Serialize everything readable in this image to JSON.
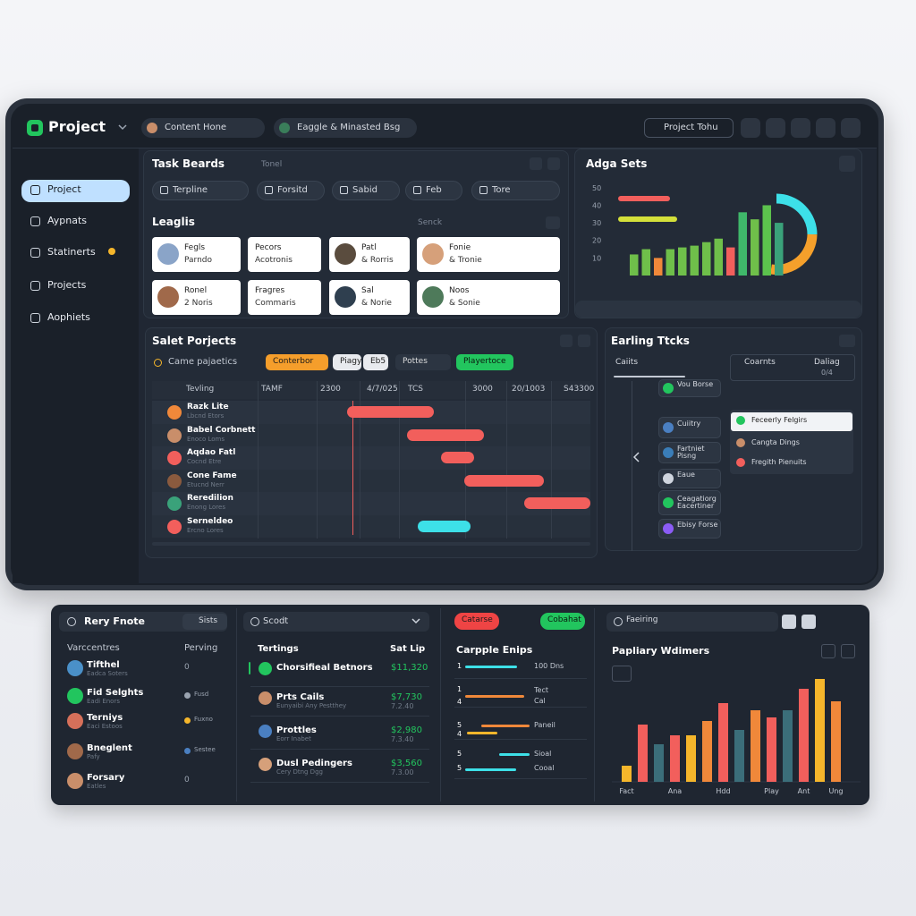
{
  "header": {
    "brand": "Project",
    "tabs": [
      "Content Hone",
      "Eaggle & Minasted Bsg"
    ],
    "menu": "Project Tohu"
  },
  "sidebar": [
    "Project",
    "Aypnats",
    "Statinerts",
    "Projects",
    "Aophiets"
  ],
  "task_boards": {
    "title": "Task Beards",
    "tab": "Tonel",
    "filters": [
      "Terpline",
      "Forsitd",
      "Sabid",
      "Feb",
      "Tore"
    ],
    "section": "Leaglis",
    "search": "Senck",
    "cards": [
      {
        "name": "Fegls",
        "sub": "Parndo"
      },
      {
        "name": "Pecors",
        "sub": "Acotronis"
      },
      {
        "name": "Patl",
        "sub": "& Rorris"
      },
      {
        "name": "Fonie",
        "sub": "& Tronie"
      },
      {
        "name": "Ronel",
        "sub": "2 Noris"
      },
      {
        "name": "Fragres",
        "sub": "Commaris"
      },
      {
        "name": "Sal",
        "sub": "& Norie"
      },
      {
        "name": "Noos",
        "sub": "& Sonie"
      }
    ]
  },
  "chart_data": [
    {
      "type": "bar",
      "title": "Adga Sets",
      "values": [
        12,
        15,
        10,
        15,
        16,
        17,
        19,
        21,
        16,
        36,
        32,
        40,
        30
      ],
      "colors": [
        "#6fbf4a",
        "#6fbf4a",
        "#f0883a",
        "#6fbf4a",
        "#6fbf4a",
        "#6fbf4a",
        "#6fbf4a",
        "#6fbf4a",
        "#f25f5c",
        "#3fb86a",
        "#6fbf4a",
        "#5cc24d",
        "#3aa27a"
      ],
      "ylim": [
        0,
        55
      ],
      "yticks": [
        50,
        40,
        30,
        20,
        10
      ]
    },
    {
      "type": "bar",
      "title": "Papliary Wdimers",
      "categories": [
        "Fact",
        null,
        null,
        "Ana",
        null,
        null,
        "Hdd",
        null,
        null,
        "Play",
        null,
        "Ant",
        null,
        "Ung"
      ],
      "values": [
        18,
        64,
        42,
        52,
        52,
        68,
        88,
        58,
        80,
        72,
        80,
        104,
        115,
        90
      ],
      "colors": [
        "#f5b62b",
        "#f25f5c",
        "#3b6e7a",
        "#f25f5c",
        "#f5b62b",
        "#f0883a",
        "#f25f5c",
        "#3b6e7a",
        "#f0883a",
        "#f25f5c",
        "#3b6e7a",
        "#f25f5c",
        "#f5b62b",
        "#f0883a"
      ],
      "ylim": [
        0,
        120
      ]
    }
  ],
  "gantt": {
    "title": "Salet Porjects",
    "subtitle": "Came pajaetics",
    "buttons": [
      "Conterbor",
      "Piagy",
      "Eb5",
      "Pottes",
      "Playertoce"
    ],
    "columns": [
      "Tevling",
      "TAMF",
      "2300",
      "4/7/025",
      "TCS",
      "3000",
      "20/1003",
      "S43300"
    ],
    "xlim": [
      0,
      100
    ],
    "rows": [
      {
        "name": "Razk Lite",
        "sub": "Lbcnd Etors",
        "start": 27,
        "end": 53,
        "color": "#f25f5c"
      },
      {
        "name": "Babel Corbnett",
        "sub": "Enoco Loms",
        "start": 45,
        "end": 68,
        "color": "#f25f5c"
      },
      {
        "name": "Aqdao Fatl",
        "sub": "Cocnd Etre",
        "start": 55,
        "end": 65,
        "color": "#f25f5c"
      },
      {
        "name": "Cone Fame",
        "sub": "Etucnd Nerr",
        "start": 62,
        "end": 86,
        "color": "#f25f5c"
      },
      {
        "name": "Reredilion",
        "sub": "Enong Lores",
        "start": 80,
        "end": 100,
        "color": "#f25f5c"
      },
      {
        "name": "Serneldeo",
        "sub": "Ercno Lores",
        "start": 48,
        "end": 64,
        "color": "#3de0e8"
      }
    ]
  },
  "earnings": {
    "title": "Earling Ttcks",
    "tab": "Caiits",
    "columns": [
      "Coarnts",
      "Daliag"
    ],
    "count": "0/4",
    "list": [
      "Vou Borse",
      "Cuiitry",
      "Fartniet Pisng",
      "Eaue",
      "Ceagatiorg Eacertiner",
      "Ebisy Forse"
    ],
    "dropdown": [
      "Feceerly Felgirs",
      "Cangta Dings",
      "Fregith Pienuits"
    ]
  },
  "bottom": {
    "people": {
      "search": "Rery Fnote",
      "button": "Sists",
      "headers": [
        "Varccentres",
        "Perving"
      ],
      "rows": [
        {
          "name": "Tifthel",
          "sub": "Eadca Soters",
          "status": "0"
        },
        {
          "name": "Fid Selghts",
          "sub": "Eadi Enors",
          "status": "Fusd"
        },
        {
          "name": "Terniys",
          "sub": "Eaci Estoos",
          "status": "Fuxno"
        },
        {
          "name": "Bneglent",
          "sub": "Pafy",
          "status": "Sestee"
        },
        {
          "name": "Forsary",
          "sub": "Eatles",
          "status": "0"
        }
      ]
    },
    "deals": {
      "search": "Scodt",
      "headers": [
        "Tertings",
        "Sat Lip"
      ],
      "rows": [
        {
          "name": "Chorsifieal Betnors",
          "sub": "",
          "value": "$11,320",
          "value2": ""
        },
        {
          "name": "Prts Cails",
          "sub": "Eunyaibi Any Pestthey",
          "value": "$7,730",
          "value2": "7.2.40"
        },
        {
          "name": "Prottles",
          "sub": "Eorr Inabet",
          "value": "$2,980",
          "value2": "7.3.40"
        },
        {
          "name": "Dusl Pedingers",
          "sub": "Cery Dtng Dgg",
          "value": "$3,560",
          "value2": "7.3.00"
        }
      ]
    },
    "ships": {
      "buttons": [
        "Catarse",
        "Cobahat"
      ],
      "title": "Carpple Enips",
      "labels": [
        "100 Dns",
        "Tect",
        "Cal",
        "Paneil",
        "Sioal",
        "Cooal"
      ],
      "nums": [
        "1",
        "1",
        "4",
        "5",
        "4",
        "5",
        "5"
      ]
    },
    "winners": {
      "search": "Faeiring"
    }
  }
}
